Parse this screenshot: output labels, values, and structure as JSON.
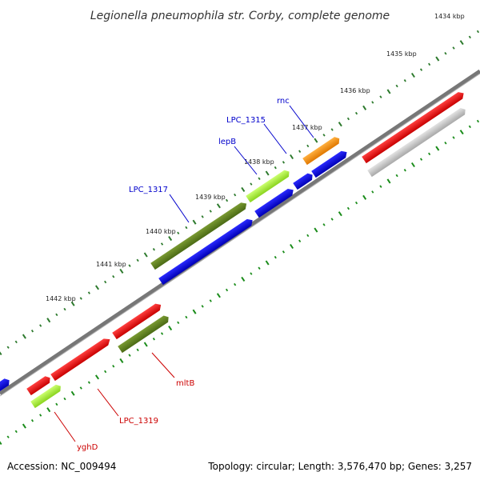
{
  "title": "Legionella pneumophila str. Corby, complete genome",
  "accession": "Accession: NC_009494",
  "topology": "Topology: circular; Length: 3,576,470 bp; Genes: 3,257",
  "colors": {
    "backbone": "#8a8a8a",
    "ticks_kbp": "#2d7a2d",
    "ticks_gc": "#1a8c1a",
    "forward_gene": "#e60000",
    "grey_gene": "#c8c8c8",
    "blue_gene": "#0000dd",
    "olive_gene": "#5a7a1e",
    "lightgreen_gene": "#a8ee3a",
    "orange_gene": "#ff8c00",
    "label_blue": "#0000cc",
    "label_red": "#cc0000"
  },
  "kbp_labels": [
    "1434 kbp",
    "1435 kbp",
    "1436 kbp",
    "1437 kbp",
    "1438 kbp",
    "1439 kbp",
    "1440 kbp",
    "1441 kbp",
    "1442 kbp"
  ],
  "gene_labels_blue": [
    "rnc",
    "LPC_1315",
    "lepB",
    "LPC_1317"
  ],
  "gene_labels_red": [
    "mltB",
    "LPC_1319",
    "yghD"
  ]
}
